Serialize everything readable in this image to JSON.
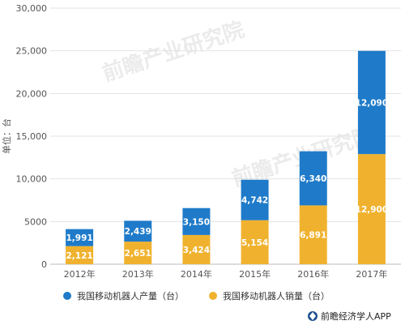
{
  "chart_data": {
    "type": "bar",
    "stacked": true,
    "categories": [
      "2012年",
      "2013年",
      "2014年",
      "2015年",
      "2016年",
      "2017年"
    ],
    "series": [
      {
        "name": "我国移动机器人销量（台）",
        "values": [
          2121,
          2651,
          3424,
          5154,
          6891,
          12900
        ],
        "color": "#f0b22e"
      },
      {
        "name": "我国移动机器人产量（台）",
        "values": [
          1991,
          2439,
          3150,
          4742,
          6340,
          12090
        ],
        "color": "#1f7bc9"
      }
    ],
    "data_labels": {
      "sales": [
        "2,121",
        "2,651",
        "3,424",
        "5,154",
        "6,891",
        "12,900"
      ],
      "production": [
        "1,991",
        "2,439",
        "3,150",
        "4,742",
        "6,340",
        "12,090"
      ]
    },
    "yticks": [
      "0",
      "5000",
      "10,000",
      "15,000",
      "20,000",
      "25,000",
      "30,000"
    ],
    "ylabel": "单位：台",
    "ylim": [
      0,
      30000
    ],
    "grid": true,
    "legend_position": "bottom"
  },
  "legend": {
    "production_label": "我国移动机器人产量（台）",
    "sales_label": "我国移动机器人销量（台）"
  },
  "footer": {
    "source": "前瞻经济学人APP"
  },
  "watermark": {
    "text": "前瞻产业研究院"
  }
}
